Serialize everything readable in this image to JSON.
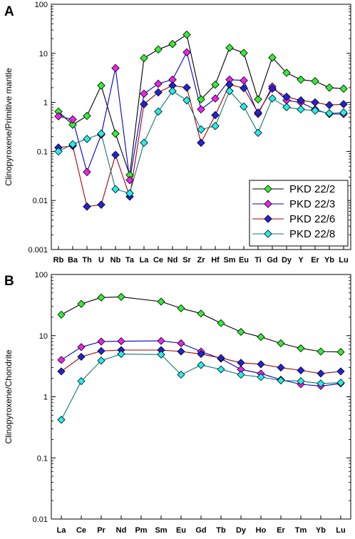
{
  "chart_data": [
    {
      "type": "line",
      "panel_label": "A",
      "ylabel": "Clinopyroxene/Primitive mantle",
      "yscale": "log",
      "ylim": [
        0.001,
        100
      ],
      "yticks": [
        0.001,
        0.01,
        0.1,
        1,
        10,
        100
      ],
      "ytick_labels": [
        "0.001",
        "0.01",
        "0.1",
        "1",
        "10",
        "100"
      ],
      "categories": [
        "Rb",
        "Ba",
        "Th",
        "U",
        "Nb",
        "Ta",
        "La",
        "Ce",
        "Nd",
        "Sr",
        "Zr",
        "Hf",
        "Sm",
        "Eu",
        "Ti",
        "Gd",
        "Dy",
        "Y",
        "Er",
        "Yb",
        "Lu"
      ],
      "legend_position": "bottom-right",
      "series": [
        {
          "name": "PKD 22/2",
          "line_color": "#000000",
          "marker_color": "#33ee33",
          "values": [
            0.65,
            0.35,
            0.53,
            2.2,
            0.23,
            0.033,
            8.0,
            12.0,
            15.5,
            24.0,
            1.15,
            2.3,
            13.0,
            10.2,
            1.15,
            8.2,
            4.0,
            2.9,
            2.7,
            2.0,
            1.9
          ]
        },
        {
          "name": "PKD 22/3",
          "line_color": "#0000cc",
          "marker_color": "#ee22ee",
          "values": [
            0.52,
            0.45,
            0.038,
            0.22,
            5.0,
            0.026,
            1.5,
            2.4,
            2.9,
            10.5,
            0.72,
            1.2,
            2.9,
            2.8,
            0.58,
            2.1,
            1.1,
            1.0,
            0.72,
            0.58,
            0.58
          ]
        },
        {
          "name": "PKD 22/6",
          "line_color": "#aa0000",
          "marker_color": "#2222dd",
          "values": [
            0.12,
            0.13,
            0.0075,
            0.0082,
            0.085,
            0.012,
            0.92,
            1.6,
            2.2,
            2.0,
            0.15,
            0.55,
            2.3,
            1.95,
            0.62,
            1.9,
            1.3,
            1.1,
            1.0,
            0.88,
            0.92
          ]
        },
        {
          "name": "PKD 22/8",
          "line_color": "#117777",
          "marker_color": "#22eeee",
          "values": [
            0.1,
            0.14,
            0.18,
            0.23,
            0.017,
            0.014,
            0.15,
            0.65,
            1.7,
            1.1,
            0.28,
            0.33,
            1.7,
            0.82,
            0.24,
            1.2,
            0.8,
            0.72,
            0.68,
            0.6,
            0.62
          ]
        }
      ]
    },
    {
      "type": "line",
      "panel_label": "B",
      "ylabel": "Clinopyroxene/Chondrite",
      "yscale": "log",
      "ylim": [
        0.01,
        100
      ],
      "yticks": [
        0.01,
        0.1,
        1,
        10,
        100
      ],
      "ytick_labels": [
        "0.01",
        "0.1",
        "1",
        "10",
        "100"
      ],
      "categories": [
        "La",
        "Ce",
        "Pr",
        "Nd",
        "Pm",
        "Sm",
        "Eu",
        "Gd",
        "Tb",
        "Dy",
        "Ho",
        "Er",
        "Tm",
        "Yb",
        "Lu"
      ],
      "series": [
        {
          "name": "PKD 22/2",
          "line_color": "#000000",
          "marker_color": "#33ee33",
          "values": [
            22,
            33,
            42,
            43,
            null,
            36,
            28,
            23,
            16,
            11.5,
            9.5,
            7.5,
            6.2,
            5.5,
            5.4
          ]
        },
        {
          "name": "PKD 22/3",
          "line_color": "#0000cc",
          "marker_color": "#ee22ee",
          "values": [
            4.0,
            6.5,
            8.0,
            8.1,
            null,
            8.2,
            7.5,
            5.5,
            4.2,
            2.8,
            2.4,
            1.9,
            1.6,
            1.5,
            1.65
          ]
        },
        {
          "name": "PKD 22/6",
          "line_color": "#aa0000",
          "marker_color": "#2222dd",
          "values": [
            2.6,
            4.5,
            5.6,
            5.8,
            null,
            5.8,
            5.5,
            5.0,
            4.3,
            3.6,
            3.4,
            3.0,
            2.7,
            2.4,
            2.6
          ]
        },
        {
          "name": "PKD 22/8",
          "line_color": "#117777",
          "marker_color": "#22eeee",
          "values": [
            0.42,
            1.8,
            3.9,
            5.0,
            null,
            4.9,
            2.3,
            3.3,
            2.8,
            2.3,
            2.1,
            1.85,
            1.8,
            1.65,
            1.7
          ]
        }
      ]
    }
  ]
}
